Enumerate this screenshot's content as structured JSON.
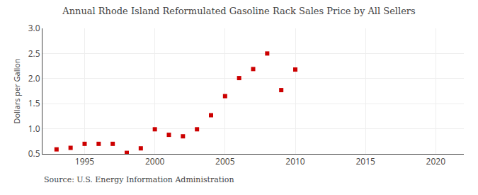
{
  "chart_data": {
    "type": "scatter",
    "title": "Annual Rhode Island Reformulated Gasoline Rack Sales Price by All Sellers",
    "ylabel": "Dollars per Gallon",
    "annotations": [
      "Source: U.S. Energy Information Administration"
    ],
    "x": [
      1993,
      1994,
      1995,
      1996,
      1997,
      1998,
      1999,
      2000,
      2001,
      2002,
      2003,
      2004,
      2005,
      2006,
      2007,
      2008,
      2009,
      2010
    ],
    "values": [
      0.59,
      0.62,
      0.7,
      0.7,
      0.7,
      0.52,
      0.61,
      0.99,
      0.88,
      0.85,
      0.99,
      1.27,
      1.65,
      2.01,
      2.19,
      2.5,
      1.77,
      2.18
    ],
    "color": "#cc0000",
    "marker": "square",
    "xlim": [
      1992,
      2022
    ],
    "ylim": [
      0.5,
      3.0
    ],
    "xticks": [
      1995,
      2000,
      2005,
      2010,
      2015,
      2020
    ],
    "yticks": [
      0.5,
      {
        "value": 1.0,
        "label": "1.0"
      },
      1.5,
      {
        "value": 2.0,
        "label": "2.0"
      },
      2.5,
      {
        "value": 3.0,
        "label": "3.0"
      }
    ],
    "grid": true
  }
}
